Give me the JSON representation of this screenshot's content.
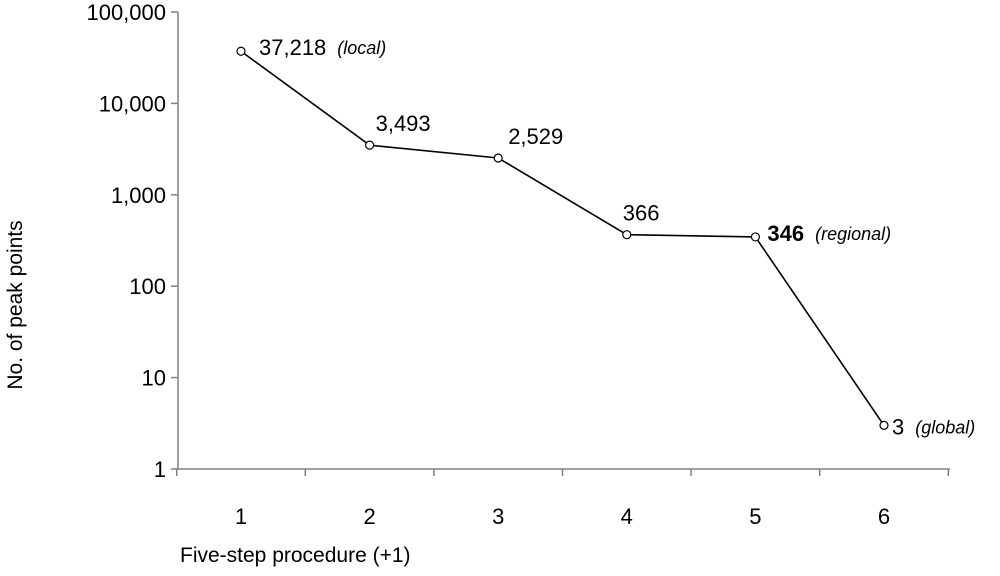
{
  "chart_data": {
    "type": "line",
    "scale": "log",
    "xlabel": "Five-step procedure (+1)",
    "ylabel": "No. of peak points",
    "ylim": [
      1,
      100000
    ],
    "y_ticks": [
      {
        "value": 1,
        "label": "1"
      },
      {
        "value": 10,
        "label": "10"
      },
      {
        "value": 100,
        "label": "100"
      },
      {
        "value": 1000,
        "label": "1,000"
      },
      {
        "value": 10000,
        "label": "10,000"
      },
      {
        "value": 100000,
        "label": "100,000"
      }
    ],
    "x_ticks": [
      "1",
      "2",
      "3",
      "4",
      "5",
      "6"
    ],
    "points": [
      {
        "x": 1,
        "y": 37218,
        "label": "37,218",
        "note": "(local)",
        "bold": false
      },
      {
        "x": 2,
        "y": 3493,
        "label": "3,493",
        "note": "",
        "bold": false
      },
      {
        "x": 3,
        "y": 2529,
        "label": "2,529",
        "note": "",
        "bold": false
      },
      {
        "x": 4,
        "y": 366,
        "label": "366",
        "note": "",
        "bold": false
      },
      {
        "x": 5,
        "y": 346,
        "label": "346",
        "note": "(regional)",
        "bold": true
      },
      {
        "x": 6,
        "y": 3,
        "label": "3",
        "note": "(global)",
        "bold": false
      }
    ],
    "line_color": "#000000",
    "marker_fill": "#ffffff",
    "grid": false
  }
}
